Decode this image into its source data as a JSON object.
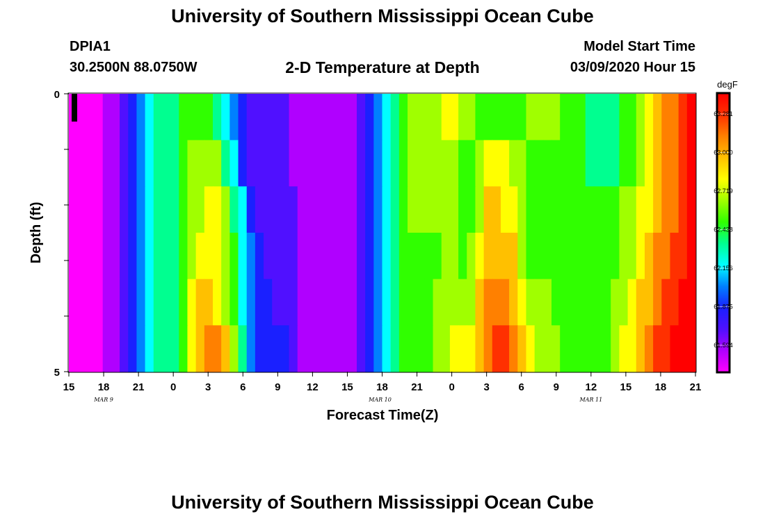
{
  "header": {
    "title": "University of Southern Mississippi Ocean Cube",
    "station": "DPIA1",
    "coords": "30.2500N 88.0750W",
    "subtitle": "2-D Temperature at Depth",
    "run_label": "Model Start Time",
    "run_time": "03/09/2020 Hour 15"
  },
  "footer": {
    "title": "University of Southern Mississippi Ocean Cube"
  },
  "chart_data": {
    "type": "heatmap",
    "title": "2-D Temperature at Depth",
    "xlabel": "Forecast Time(Z)",
    "ylabel": "Depth (ft)",
    "x_tick_labels": [
      "15",
      "18",
      "21",
      "0",
      "3",
      "6",
      "9",
      "12",
      "15",
      "18",
      "21",
      "0",
      "3",
      "6",
      "9",
      "12",
      "15",
      "18",
      "21"
    ],
    "date_labels": [
      "MAR 9",
      "MAR 10",
      "MAR 11"
    ],
    "y_tick_labels": [
      "0",
      "5"
    ],
    "ylim": [
      0,
      5
    ],
    "colorbar": {
      "unit": "degF",
      "tick_labels": [
        "63.281",
        "63.000",
        "62.719",
        "62.438",
        "62.156",
        "61.875",
        "61.594"
      ]
    },
    "palette": [
      "#ff00ff",
      "#b000ff",
      "#5010ff",
      "#1a20ff",
      "#0080ff",
      "#00ffff",
      "#00ff90",
      "#30ff00",
      "#a0ff00",
      "#ffff00",
      "#ffc000",
      "#ff8000",
      "#ff3000",
      "#ff0000"
    ],
    "depth_rows": 5,
    "hour_step": 1.5,
    "temperature_index_rows": [
      [
        0,
        0,
        0,
        0,
        1,
        1,
        2,
        3,
        4,
        5,
        6,
        6,
        6,
        7,
        7,
        7,
        7,
        6,
        5,
        4,
        3,
        2,
        2,
        2,
        2,
        2,
        1,
        1,
        1,
        1,
        1,
        1,
        1,
        1,
        2,
        3,
        4,
        5,
        6,
        7,
        8,
        8,
        8,
        8,
        9,
        9,
        8,
        8,
        7,
        7,
        7,
        7,
        7,
        7,
        8,
        8,
        8,
        8,
        7,
        7,
        7,
        6,
        6,
        6,
        6,
        7,
        7,
        8,
        9,
        10,
        11,
        11,
        12,
        13
      ],
      [
        0,
        0,
        0,
        0,
        1,
        1,
        2,
        3,
        4,
        5,
        6,
        6,
        6,
        7,
        8,
        8,
        8,
        8,
        6,
        5,
        3,
        2,
        2,
        2,
        2,
        2,
        1,
        1,
        1,
        1,
        1,
        1,
        1,
        1,
        2,
        3,
        4,
        5,
        6,
        7,
        8,
        8,
        8,
        8,
        8,
        8,
        7,
        7,
        8,
        9,
        9,
        9,
        8,
        8,
        7,
        7,
        7,
        7,
        7,
        7,
        7,
        6,
        6,
        6,
        6,
        7,
        7,
        8,
        9,
        10,
        11,
        11,
        12,
        13
      ],
      [
        0,
        0,
        0,
        0,
        1,
        1,
        2,
        3,
        4,
        5,
        6,
        6,
        6,
        7,
        8,
        8,
        9,
        9,
        8,
        6,
        5,
        3,
        2,
        2,
        2,
        2,
        2,
        1,
        1,
        1,
        1,
        1,
        1,
        1,
        2,
        3,
        4,
        5,
        6,
        7,
        8,
        8,
        8,
        8,
        8,
        8,
        7,
        7,
        8,
        10,
        10,
        9,
        9,
        8,
        7,
        7,
        7,
        7,
        7,
        7,
        7,
        7,
        7,
        7,
        7,
        8,
        8,
        9,
        9,
        10,
        11,
        11,
        12,
        13
      ],
      [
        0,
        0,
        0,
        0,
        1,
        1,
        2,
        3,
        4,
        5,
        6,
        6,
        6,
        7,
        8,
        9,
        9,
        9,
        8,
        7,
        5,
        4,
        3,
        2,
        2,
        2,
        2,
        1,
        1,
        1,
        1,
        1,
        1,
        1,
        2,
        3,
        4,
        5,
        6,
        7,
        7,
        7,
        7,
        7,
        8,
        8,
        7,
        8,
        9,
        10,
        10,
        10,
        10,
        8,
        7,
        7,
        7,
        7,
        7,
        7,
        7,
        7,
        7,
        7,
        7,
        8,
        8,
        9,
        10,
        11,
        11,
        12,
        12,
        13
      ],
      [
        0,
        0,
        0,
        0,
        1,
        1,
        2,
        3,
        4,
        5,
        6,
        6,
        6,
        7,
        9,
        10,
        10,
        9,
        8,
        7,
        5,
        4,
        3,
        3,
        2,
        2,
        2,
        1,
        1,
        1,
        1,
        1,
        1,
        1,
        2,
        3,
        4,
        5,
        6,
        7,
        7,
        7,
        7,
        8,
        8,
        8,
        8,
        8,
        10,
        11,
        11,
        11,
        10,
        9,
        8,
        8,
        8,
        7,
        7,
        7,
        7,
        7,
        7,
        7,
        8,
        8,
        9,
        10,
        10,
        11,
        12,
        12,
        13,
        13
      ],
      [
        0,
        0,
        0,
        0,
        1,
        1,
        2,
        3,
        4,
        5,
        6,
        6,
        6,
        7,
        9,
        10,
        11,
        11,
        10,
        8,
        6,
        4,
        3,
        3,
        3,
        3,
        2,
        1,
        1,
        1,
        1,
        1,
        1,
        1,
        2,
        3,
        4,
        5,
        6,
        7,
        7,
        7,
        7,
        8,
        8,
        9,
        9,
        9,
        10,
        11,
        12,
        12,
        11,
        10,
        9,
        8,
        8,
        8,
        7,
        7,
        7,
        7,
        7,
        7,
        8,
        9,
        9,
        10,
        11,
        12,
        12,
        13,
        13,
        13
      ]
    ]
  }
}
